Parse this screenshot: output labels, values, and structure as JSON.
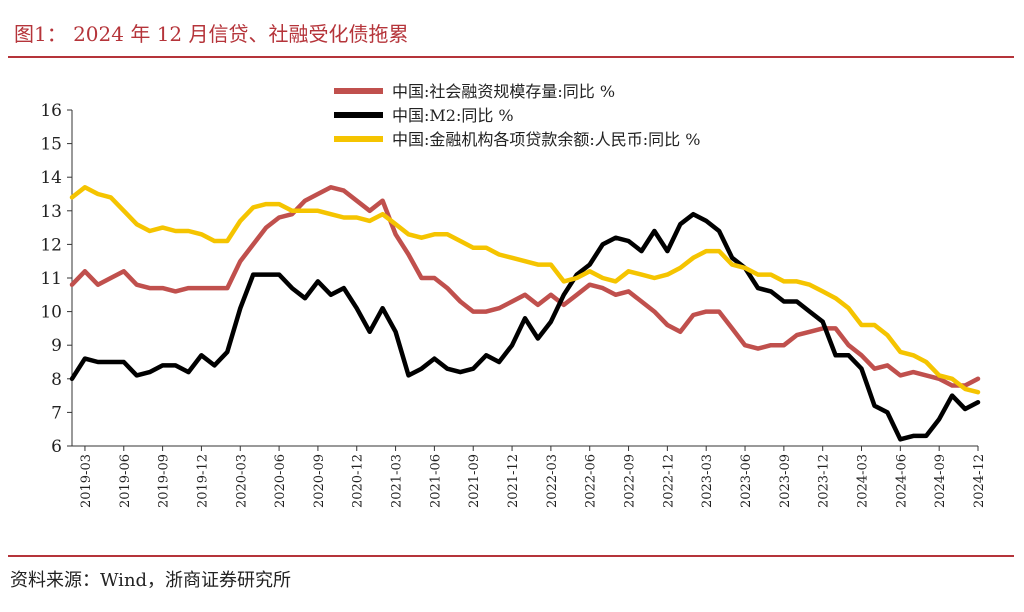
{
  "header": {
    "title": "图1： 2024 年 12 月信贷、社融受化债拖累"
  },
  "footer": {
    "source": "资料来源：Wind，浙商证券研究所"
  },
  "chart_data": {
    "type": "line",
    "ylim": [
      6,
      16
    ],
    "yticks": [
      6,
      7,
      8,
      9,
      10,
      11,
      12,
      13,
      14,
      15,
      16
    ],
    "xtick_labels": [
      "2019-03",
      "2019-06",
      "2019-09",
      "2019-12",
      "2020-03",
      "2020-06",
      "2020-09",
      "2020-12",
      "2021-03",
      "2021-06",
      "2021-09",
      "2021-12",
      "2022-03",
      "2022-06",
      "2022-09",
      "2022-12",
      "2023-03",
      "2023-06",
      "2023-09",
      "2023-12",
      "2024-03",
      "2024-06",
      "2024-09",
      "2024-12"
    ],
    "x": [
      "2019-02",
      "2019-03",
      "2019-04",
      "2019-05",
      "2019-06",
      "2019-07",
      "2019-08",
      "2019-09",
      "2019-10",
      "2019-11",
      "2019-12",
      "2020-01",
      "2020-02",
      "2020-03",
      "2020-04",
      "2020-05",
      "2020-06",
      "2020-07",
      "2020-08",
      "2020-09",
      "2020-10",
      "2020-11",
      "2020-12",
      "2021-01",
      "2021-02",
      "2021-03",
      "2021-04",
      "2021-05",
      "2021-06",
      "2021-07",
      "2021-08",
      "2021-09",
      "2021-10",
      "2021-11",
      "2021-12",
      "2022-01",
      "2022-02",
      "2022-03",
      "2022-04",
      "2022-05",
      "2022-06",
      "2022-07",
      "2022-08",
      "2022-09",
      "2022-10",
      "2022-11",
      "2022-12",
      "2023-01",
      "2023-02",
      "2023-03",
      "2023-04",
      "2023-05",
      "2023-06",
      "2023-07",
      "2023-08",
      "2023-09",
      "2023-10",
      "2023-11",
      "2023-12",
      "2024-01",
      "2024-02",
      "2024-03",
      "2024-04",
      "2024-05",
      "2024-06",
      "2024-07",
      "2024-08",
      "2024-09",
      "2024-10",
      "2024-11",
      "2024-12"
    ],
    "legend_position": "top",
    "grid": false,
    "series": [
      {
        "name": "中国:社会融资规模存量:同比 %",
        "color": "#c0504d",
        "values": [
          10.8,
          11.2,
          10.8,
          11.0,
          11.2,
          10.8,
          10.7,
          10.7,
          10.6,
          10.7,
          10.7,
          10.7,
          10.7,
          11.5,
          12.0,
          12.5,
          12.8,
          12.9,
          13.3,
          13.5,
          13.7,
          13.6,
          13.3,
          13.0,
          13.3,
          12.3,
          11.7,
          11.0,
          11.0,
          10.7,
          10.3,
          10.0,
          10.0,
          10.1,
          10.3,
          10.5,
          10.2,
          10.5,
          10.2,
          10.5,
          10.8,
          10.7,
          10.5,
          10.6,
          10.3,
          10.0,
          9.6,
          9.4,
          9.9,
          10.0,
          10.0,
          9.5,
          9.0,
          8.9,
          9.0,
          9.0,
          9.3,
          9.4,
          9.5,
          9.5,
          9.0,
          8.7,
          8.3,
          8.4,
          8.1,
          8.2,
          8.1,
          8.0,
          7.8,
          7.8,
          8.0
        ]
      },
      {
        "name": "中国:M2:同比 %",
        "color": "#000000",
        "values": [
          8.0,
          8.6,
          8.5,
          8.5,
          8.5,
          8.1,
          8.2,
          8.4,
          8.4,
          8.2,
          8.7,
          8.4,
          8.8,
          10.1,
          11.1,
          11.1,
          11.1,
          10.7,
          10.4,
          10.9,
          10.5,
          10.7,
          10.1,
          9.4,
          10.1,
          9.4,
          8.1,
          8.3,
          8.6,
          8.3,
          8.2,
          8.3,
          8.7,
          8.5,
          9.0,
          9.8,
          9.2,
          9.7,
          10.5,
          11.1,
          11.4,
          12.0,
          12.2,
          12.1,
          11.8,
          12.4,
          11.8,
          12.6,
          12.9,
          12.7,
          12.4,
          11.6,
          11.3,
          10.7,
          10.6,
          10.3,
          10.3,
          10.0,
          9.7,
          8.7,
          8.7,
          8.3,
          7.2,
          7.0,
          6.2,
          6.3,
          6.3,
          6.8,
          7.5,
          7.1,
          7.3
        ]
      },
      {
        "name": "中国:金融机构各项贷款余额:人民币:同比 %",
        "color": "#f5c400",
        "values": [
          13.4,
          13.7,
          13.5,
          13.4,
          13.0,
          12.6,
          12.4,
          12.5,
          12.4,
          12.4,
          12.3,
          12.1,
          12.1,
          12.7,
          13.1,
          13.2,
          13.2,
          13.0,
          13.0,
          13.0,
          12.9,
          12.8,
          12.8,
          12.7,
          12.9,
          12.6,
          12.3,
          12.2,
          12.3,
          12.3,
          12.1,
          11.9,
          11.9,
          11.7,
          11.6,
          11.5,
          11.4,
          11.4,
          10.9,
          11.0,
          11.2,
          11.0,
          10.9,
          11.2,
          11.1,
          11.0,
          11.1,
          11.3,
          11.6,
          11.8,
          11.8,
          11.4,
          11.3,
          11.1,
          11.1,
          10.9,
          10.9,
          10.8,
          10.6,
          10.4,
          10.1,
          9.6,
          9.6,
          9.3,
          8.8,
          8.7,
          8.5,
          8.1,
          8.0,
          7.7,
          7.6
        ]
      }
    ]
  }
}
